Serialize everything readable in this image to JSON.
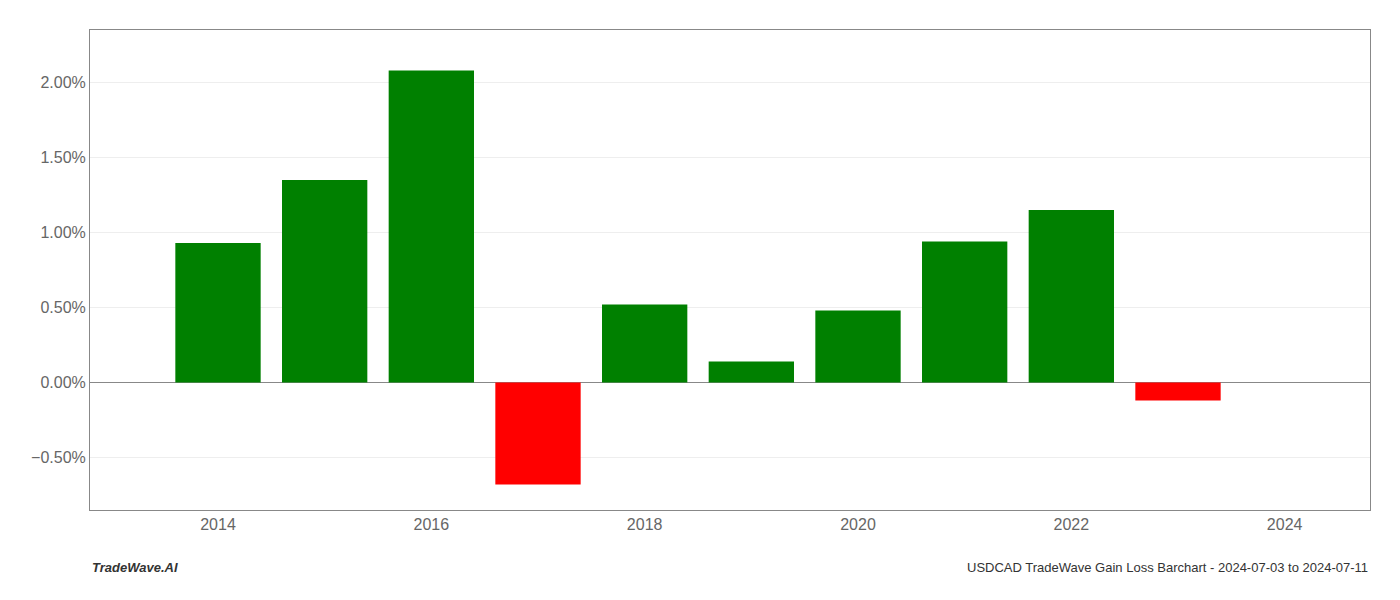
{
  "chart_data": {
    "type": "bar",
    "x": [
      2014,
      2015,
      2016,
      2017,
      2018,
      2019,
      2020,
      2021,
      2022,
      2023
    ],
    "values": [
      0.0093,
      0.0135,
      0.0208,
      -0.0068,
      0.0052,
      0.0014,
      0.0048,
      0.0094,
      0.0115,
      -0.0012
    ],
    "colors": [
      "#008000",
      "#008000",
      "#008000",
      "#ff0000",
      "#008000",
      "#008000",
      "#008000",
      "#008000",
      "#008000",
      "#ff0000"
    ],
    "xlim": [
      2012.8,
      2024.8
    ],
    "xticks": [
      2014,
      2016,
      2018,
      2020,
      2022,
      2024
    ],
    "ylim": [
      -0.0085,
      0.0235
    ],
    "yticks": [
      {
        "value": -0.005,
        "label": "−0.50%"
      },
      {
        "value": 0.0,
        "label": "0.00%"
      },
      {
        "value": 0.005,
        "label": "0.50%"
      },
      {
        "value": 0.01,
        "label": "1.00%"
      },
      {
        "value": 0.015,
        "label": "1.50%"
      },
      {
        "value": 0.02,
        "label": "2.00%"
      }
    ],
    "grid": true,
    "annotations": [
      "TradeWave.AI",
      "USDCAD TradeWave Gain Loss Barchart - 2024-07-03 to 2024-07-11"
    ]
  }
}
